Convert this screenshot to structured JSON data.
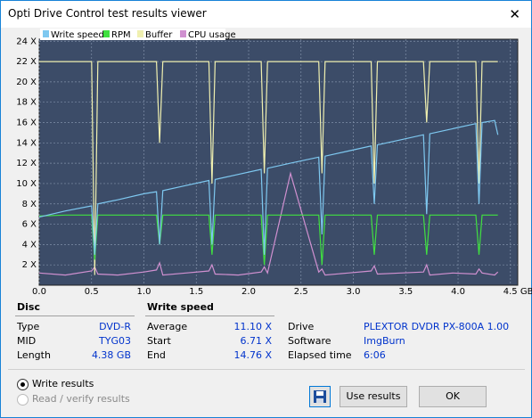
{
  "window": {
    "title": "Opti Drive Control test results viewer"
  },
  "chart_data": {
    "type": "line",
    "xlim": [
      0,
      4.57
    ],
    "ylim": [
      0,
      24.2
    ],
    "xticks": [
      {
        "value": 0,
        "label": "0.0"
      },
      0.5,
      {
        "value": 1,
        "label": "1.0"
      },
      1.5,
      {
        "value": 2,
        "label": "2.0"
      },
      2.5,
      {
        "value": 3,
        "label": "3.0"
      },
      3.5,
      {
        "value": 4,
        "label": "4.0"
      },
      {
        "value": 4.5,
        "label": "4.5 GB"
      }
    ],
    "yticks": [
      {
        "value": 2,
        "label": "2 X"
      },
      {
        "value": 4,
        "label": "4 X"
      },
      {
        "value": 6,
        "label": "6 X"
      },
      {
        "value": 8,
        "label": "8 X"
      },
      {
        "value": 10,
        "label": "10 X"
      },
      {
        "value": 12,
        "label": "12 X"
      },
      {
        "value": 14,
        "label": "14 X"
      },
      {
        "value": 16,
        "label": "16 X"
      },
      {
        "value": 18,
        "label": "18 X"
      },
      {
        "value": 20,
        "label": "20 X"
      },
      {
        "value": 22,
        "label": "22 X"
      },
      {
        "value": 24,
        "label": "24 X"
      }
    ],
    "grid": true,
    "x": [
      0,
      0.25,
      0.5,
      0.53,
      0.56,
      0.75,
      1.0,
      1.12,
      1.15,
      1.18,
      1.4,
      1.62,
      1.65,
      1.68,
      1.9,
      2.12,
      2.15,
      2.18,
      2.4,
      2.67,
      2.7,
      2.73,
      2.95,
      3.17,
      3.2,
      3.23,
      3.45,
      3.67,
      3.7,
      3.73,
      3.95,
      4.17,
      4.2,
      4.23,
      4.35,
      4.38
    ],
    "series": [
      {
        "name": "Write speed",
        "color": "#7ec8f0",
        "values": [
          6.7,
          7.3,
          7.8,
          3,
          8.0,
          8.4,
          9.0,
          9.2,
          4,
          9.3,
          9.8,
          10.3,
          4,
          10.4,
          10.9,
          11.4,
          3,
          11.5,
          12.0,
          12.6,
          5,
          12.7,
          13.2,
          13.7,
          8,
          13.8,
          14.3,
          14.8,
          7,
          14.9,
          15.4,
          15.9,
          8,
          16.0,
          16.2,
          14.8
        ]
      },
      {
        "name": "RPM",
        "color": "#40e040",
        "values": [
          6.8,
          6.9,
          6.9,
          2.5,
          6.9,
          6.9,
          6.9,
          6.9,
          4,
          6.9,
          6.9,
          6.9,
          3,
          6.9,
          6.9,
          6.9,
          2,
          6.9,
          6.9,
          6.9,
          2,
          6.9,
          6.9,
          6.9,
          3,
          6.9,
          6.9,
          6.9,
          3,
          6.9,
          6.9,
          6.9,
          3,
          6.9,
          6.9,
          6.9
        ]
      },
      {
        "name": "Buffer",
        "color": "#f0f0b0",
        "values": [
          22,
          22,
          22,
          1,
          22,
          22,
          22,
          22,
          14,
          22,
          22,
          22,
          10,
          22,
          22,
          22,
          11,
          22,
          22,
          22,
          11,
          22,
          22,
          22,
          10,
          22,
          22,
          22,
          16,
          22,
          22,
          22,
          10,
          22,
          22,
          22
        ]
      },
      {
        "name": "CPU usage",
        "color": "#d090d0",
        "values": [
          1.2,
          1.0,
          1.4,
          1.8,
          1.1,
          1.0,
          1.3,
          1.5,
          2.2,
          1.0,
          1.2,
          1.4,
          2.0,
          1.1,
          1.0,
          1.3,
          1.8,
          1.2,
          11,
          1.3,
          1.6,
          1.0,
          1.2,
          1.4,
          1.9,
          1.1,
          1.2,
          1.3,
          2.0,
          1.0,
          1.2,
          1.1,
          1.6,
          1.2,
          1.0,
          1.3
        ]
      }
    ]
  },
  "disc": {
    "header": "Disc",
    "rows": [
      {
        "label": "Type",
        "value": "DVD-R"
      },
      {
        "label": "MID",
        "value": "TYG03"
      },
      {
        "label": "Length",
        "value": "4.38 GB"
      }
    ]
  },
  "write_speed": {
    "header": "Write speed",
    "rows": [
      {
        "label": "Average",
        "value": "11.10 X"
      },
      {
        "label": "Start",
        "value": "6.71 X"
      },
      {
        "label": "End",
        "value": "14.76 X"
      }
    ]
  },
  "drive_info": {
    "rows": [
      {
        "label": "Drive",
        "value": "PLEXTOR  DVDR   PX-800A 1.00"
      },
      {
        "label": "Software",
        "value": "ImgBurn"
      },
      {
        "label": "Elapsed time",
        "value": "6:06"
      }
    ]
  },
  "options": [
    "Write results",
    "Read / verify results"
  ],
  "buttons": [
    "Use results",
    "OK"
  ]
}
